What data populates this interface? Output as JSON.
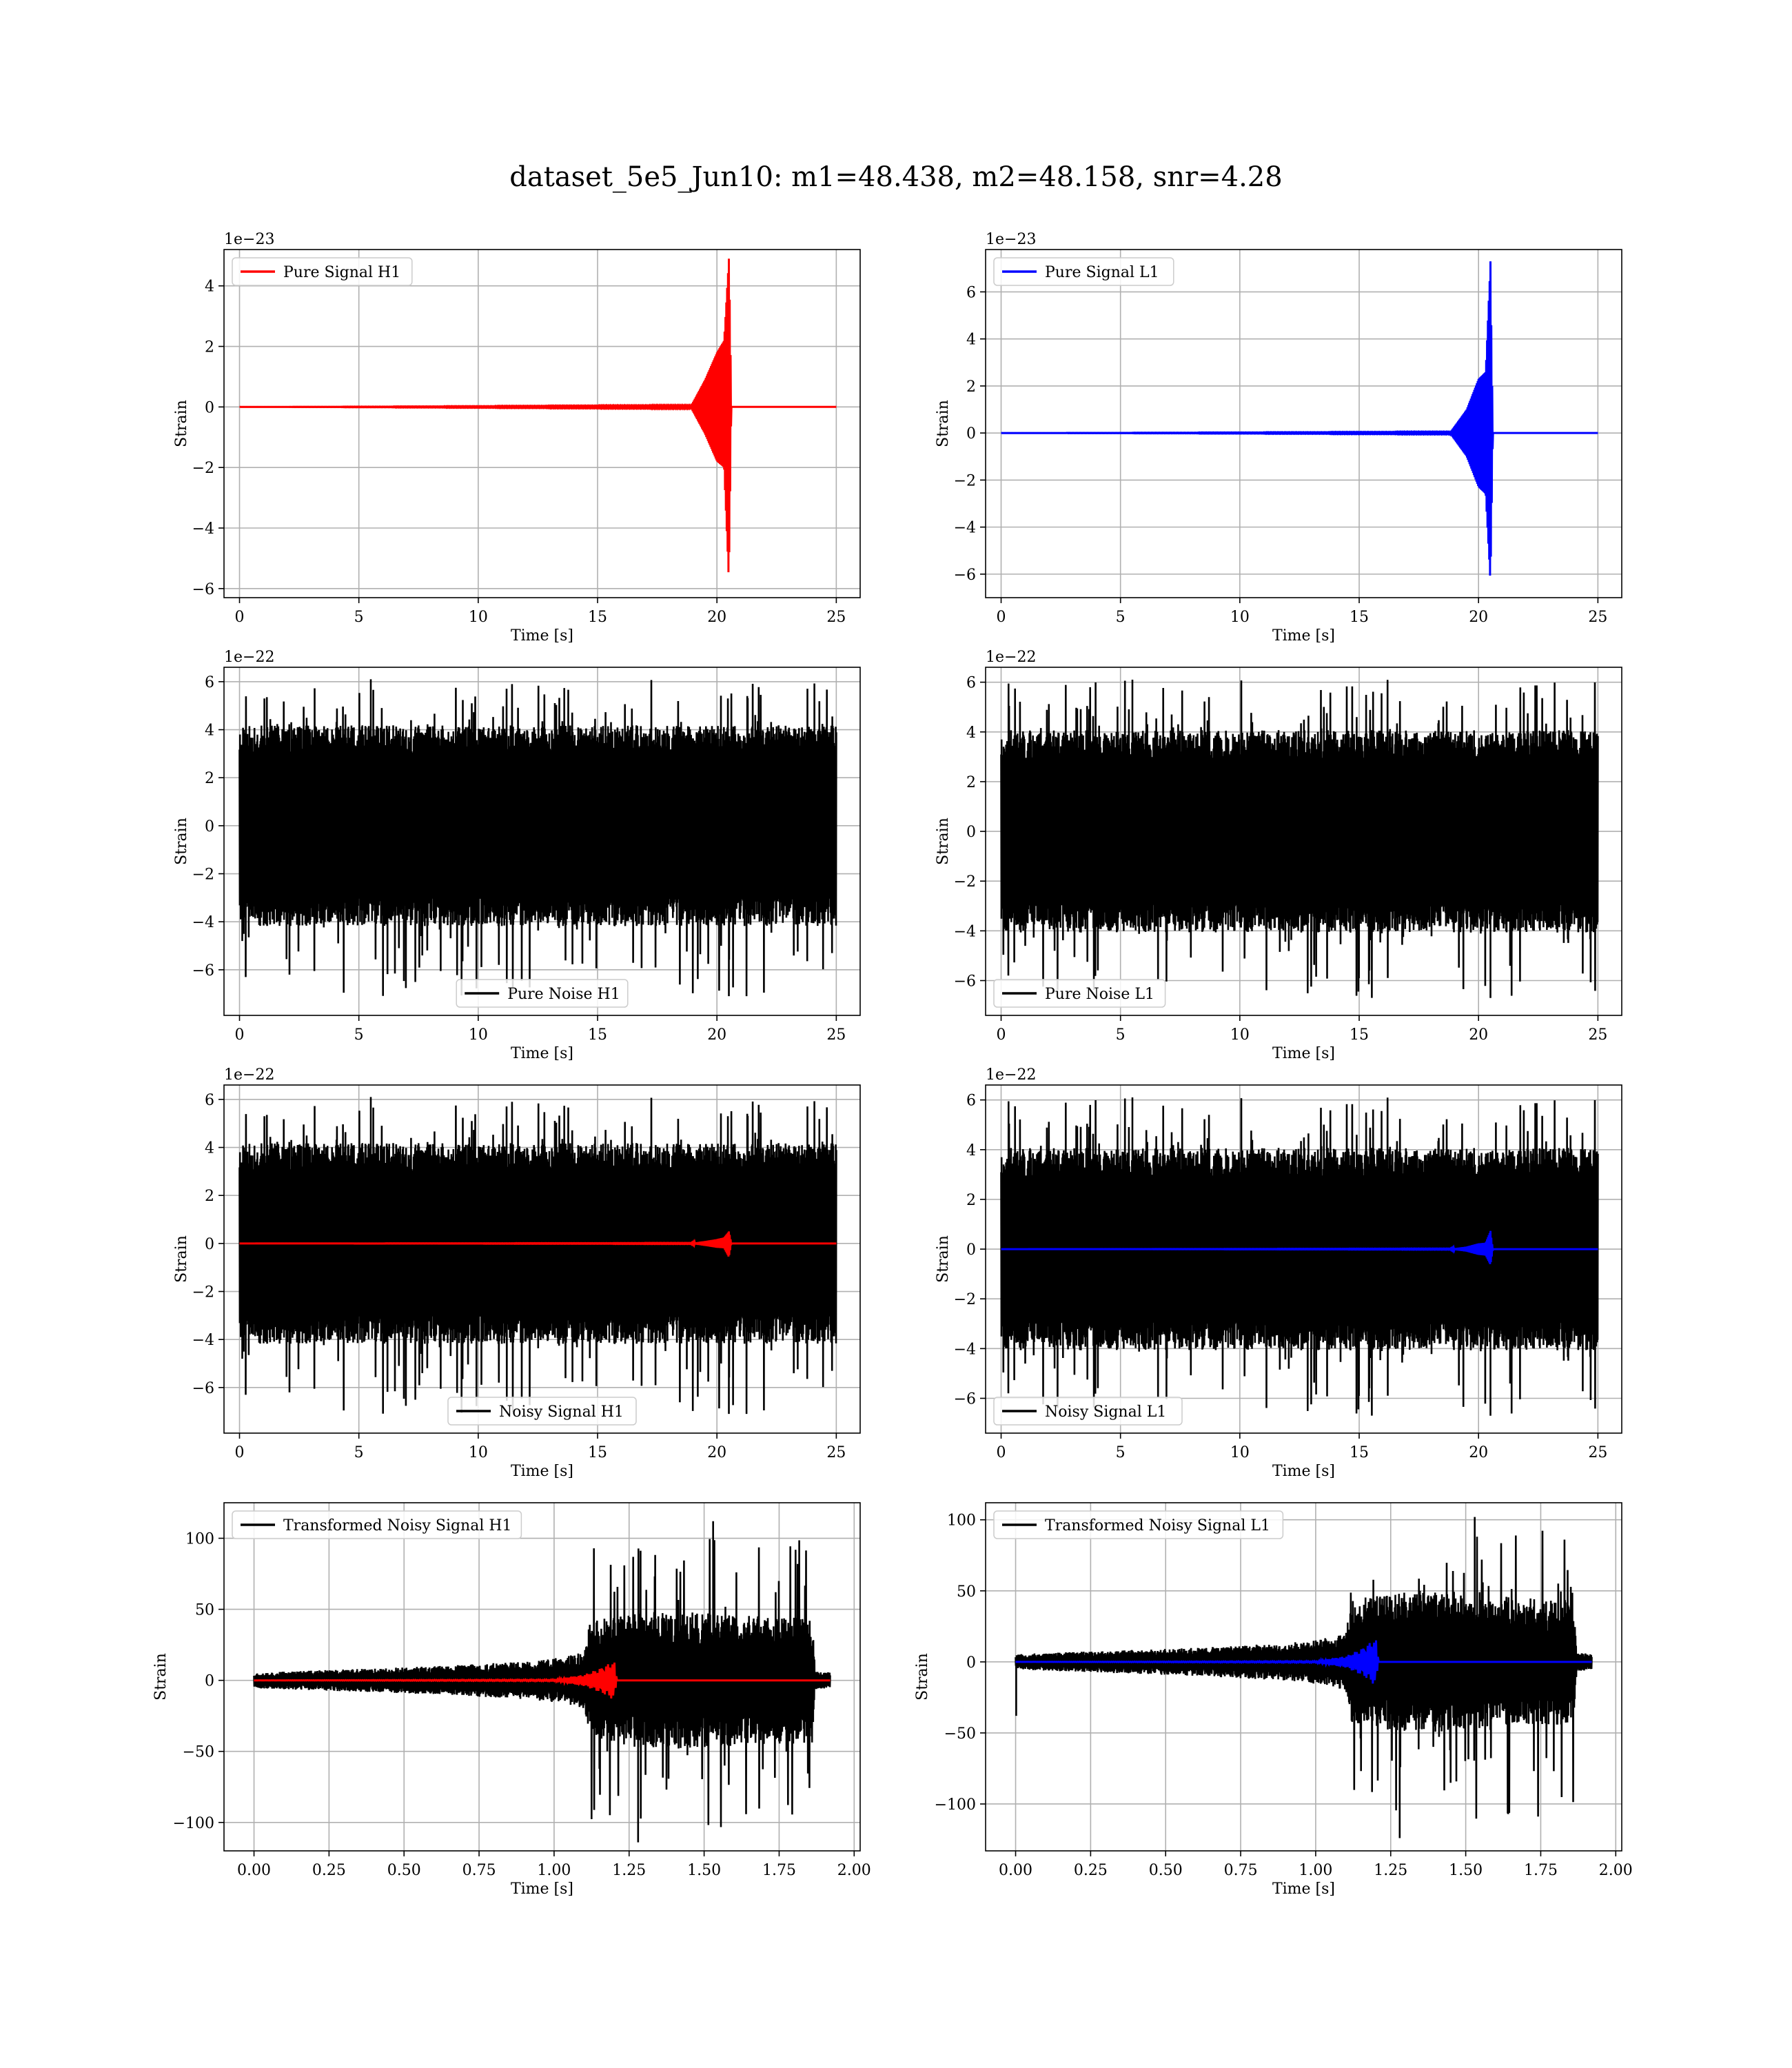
{
  "figure": {
    "suptitle": "dataset_5e5_Jun10: m1=48.438, m2=48.158, snr=4.28"
  },
  "chart_data": [
    {
      "type": "line",
      "panel": "pure-signal-h1",
      "xlabel": "Time [s]",
      "ylabel": "Strain",
      "offset": "1e−23",
      "xlim": [
        -0.65,
        26.0
      ],
      "ylim": [
        -6.3,
        5.2
      ],
      "xticks": [
        0,
        5,
        10,
        15,
        20,
        25
      ],
      "xtick_labels": [
        "0",
        "5",
        "10",
        "15",
        "20",
        "25"
      ],
      "yticks": [
        -6,
        -4,
        -2,
        0,
        2,
        4
      ],
      "ytick_labels": [
        "−6",
        "−4",
        "−2",
        "0",
        "2",
        "4"
      ],
      "grid": true,
      "legend_position": "upper-left",
      "series": [
        {
          "name": "Pure Signal H1",
          "color": "#ff0000",
          "kind": "chirp",
          "x": [
            0,
            18.9,
            19.5,
            20.0,
            20.3,
            20.5,
            20.55,
            20.6,
            25
          ],
          "upper": [
            0,
            0.02,
            0.9,
            1.8,
            2.2,
            4.9,
            3.0,
            0,
            0
          ],
          "lower": [
            0,
            -0.02,
            -0.9,
            -1.8,
            -2.0,
            -5.8,
            -3.0,
            0,
            0
          ]
        }
      ]
    },
    {
      "type": "line",
      "panel": "pure-signal-l1",
      "xlabel": "Time [s]",
      "ylabel": "Strain",
      "offset": "1e−23",
      "xlim": [
        -0.65,
        26.0
      ],
      "ylim": [
        -7.0,
        7.8
      ],
      "xticks": [
        0,
        5,
        10,
        15,
        20,
        25
      ],
      "xtick_labels": [
        "0",
        "5",
        "10",
        "15",
        "20",
        "25"
      ],
      "yticks": [
        -6,
        -4,
        -2,
        0,
        2,
        4,
        6
      ],
      "ytick_labels": [
        "−6",
        "−4",
        "−2",
        "0",
        "2",
        "4",
        "6"
      ],
      "grid": true,
      "legend_position": "upper-left",
      "series": [
        {
          "name": "Pure Signal L1",
          "color": "#0000ff",
          "kind": "chirp",
          "x": [
            0,
            18.8,
            19.5,
            20.0,
            20.3,
            20.5,
            20.55,
            20.6,
            25
          ],
          "upper": [
            0,
            0.02,
            1.0,
            2.3,
            2.6,
            7.3,
            3.5,
            0,
            0
          ],
          "lower": [
            0,
            -0.02,
            -1.0,
            -2.3,
            -2.6,
            -6.4,
            -3.2,
            0,
            0
          ]
        }
      ]
    },
    {
      "type": "line",
      "panel": "pure-noise-h1",
      "xlabel": "Time [s]",
      "ylabel": "Strain",
      "offset": "1e−22",
      "xlim": [
        -0.65,
        26.0
      ],
      "ylim": [
        -7.9,
        6.6
      ],
      "xticks": [
        0,
        5,
        10,
        15,
        20,
        25
      ],
      "xtick_labels": [
        "0",
        "5",
        "10",
        "15",
        "20",
        "25"
      ],
      "yticks": [
        -6,
        -4,
        -2,
        0,
        2,
        4,
        6
      ],
      "ytick_labels": [
        "−6",
        "−4",
        "−2",
        "0",
        "2",
        "4",
        "6"
      ],
      "grid": true,
      "legend_position": "lower-center",
      "series": [
        {
          "name": "Pure Noise H1",
          "color": "#000000",
          "kind": "noise",
          "x_range": [
            0,
            25
          ],
          "band": 3.8,
          "peak_max": 6.1,
          "peak_min": -7.1,
          "seed": 11
        }
      ]
    },
    {
      "type": "line",
      "panel": "pure-noise-l1",
      "xlabel": "Time [s]",
      "ylabel": "Strain",
      "offset": "1e−22",
      "xlim": [
        -0.65,
        26.0
      ],
      "ylim": [
        -7.4,
        6.6
      ],
      "xticks": [
        0,
        5,
        10,
        15,
        20,
        25
      ],
      "xtick_labels": [
        "0",
        "5",
        "10",
        "15",
        "20",
        "25"
      ],
      "yticks": [
        -6,
        -4,
        -2,
        0,
        2,
        4,
        6
      ],
      "ytick_labels": [
        "−6",
        "−4",
        "−2",
        "0",
        "2",
        "4",
        "6"
      ],
      "grid": true,
      "legend_position": "lower-left",
      "series": [
        {
          "name": "Pure Noise L1",
          "color": "#000000",
          "kind": "noise",
          "x_range": [
            0,
            25
          ],
          "band": 3.7,
          "peak_max": 6.1,
          "peak_min": -6.7,
          "seed": 23
        }
      ]
    },
    {
      "type": "line",
      "panel": "noisy-signal-h1",
      "xlabel": "Time [s]",
      "ylabel": "Strain",
      "offset": "1e−22",
      "xlim": [
        -0.65,
        26.0
      ],
      "ylim": [
        -7.9,
        6.6
      ],
      "xticks": [
        0,
        5,
        10,
        15,
        20,
        25
      ],
      "xtick_labels": [
        "0",
        "5",
        "10",
        "15",
        "20",
        "25"
      ],
      "yticks": [
        -6,
        -4,
        -2,
        0,
        2,
        4,
        6
      ],
      "ytick_labels": [
        "−6",
        "−4",
        "−2",
        "0",
        "2",
        "4",
        "6"
      ],
      "grid": true,
      "legend_position": "lower-center",
      "series": [
        {
          "name": "Noisy Signal H1",
          "color": "#000000",
          "kind": "noise",
          "x_range": [
            0,
            25
          ],
          "band": 3.8,
          "peak_max": 6.1,
          "peak_min": -7.1,
          "seed": 11
        },
        {
          "name": "",
          "color": "#ff0000",
          "kind": "chirp",
          "x": [
            0,
            18.9,
            19.5,
            20.0,
            20.3,
            20.5,
            20.55,
            20.6,
            25
          ],
          "upper": [
            0,
            0.01,
            0.1,
            0.18,
            0.25,
            0.5,
            0.3,
            0,
            0
          ],
          "lower": [
            0,
            -0.01,
            -0.1,
            -0.18,
            -0.2,
            -0.58,
            -0.3,
            0,
            0
          ]
        }
      ]
    },
    {
      "type": "line",
      "panel": "noisy-signal-l1",
      "xlabel": "Time [s]",
      "ylabel": "Strain",
      "offset": "1e−22",
      "xlim": [
        -0.65,
        26.0
      ],
      "ylim": [
        -7.4,
        6.6
      ],
      "xticks": [
        0,
        5,
        10,
        15,
        20,
        25
      ],
      "xtick_labels": [
        "0",
        "5",
        "10",
        "15",
        "20",
        "25"
      ],
      "yticks": [
        -6,
        -4,
        -2,
        0,
        2,
        4,
        6
      ],
      "ytick_labels": [
        "−6",
        "−4",
        "−2",
        "0",
        "2",
        "4",
        "6"
      ],
      "grid": true,
      "legend_position": "lower-left",
      "series": [
        {
          "name": "Noisy Signal L1",
          "color": "#000000",
          "kind": "noise",
          "x_range": [
            0,
            25
          ],
          "band": 3.7,
          "peak_max": 6.1,
          "peak_min": -6.7,
          "seed": 23
        },
        {
          "name": "",
          "color": "#0000ff",
          "kind": "chirp",
          "x": [
            0,
            18.8,
            19.5,
            20.0,
            20.3,
            20.5,
            20.55,
            20.6,
            25
          ],
          "upper": [
            0,
            0.01,
            0.1,
            0.23,
            0.26,
            0.73,
            0.35,
            0,
            0
          ],
          "lower": [
            0,
            -0.01,
            -0.1,
            -0.23,
            -0.26,
            -0.64,
            -0.32,
            0,
            0
          ]
        }
      ]
    },
    {
      "type": "line",
      "panel": "transformed-noisy-signal-h1",
      "xlabel": "Time [s]",
      "ylabel": "Strain",
      "offset": "",
      "xlim": [
        -0.1,
        2.02
      ],
      "ylim": [
        -120,
        125
      ],
      "xticks": [
        0.0,
        0.25,
        0.5,
        0.75,
        1.0,
        1.25,
        1.5,
        1.75,
        2.0
      ],
      "xtick_labels": [
        "0.00",
        "0.25",
        "0.50",
        "0.75",
        "1.00",
        "1.25",
        "1.50",
        "1.75",
        "2.00"
      ],
      "yticks": [
        -100,
        -50,
        0,
        50,
        100
      ],
      "ytick_labels": [
        "−100",
        "−50",
        "0",
        "50",
        "100"
      ],
      "grid": true,
      "legend_position": "upper-left",
      "series": [
        {
          "name": "Transformed Noisy Signal H1",
          "color": "#000000",
          "kind": "whitened",
          "x_range": [
            0,
            1.92
          ],
          "seed": 37,
          "env_x": [
            0,
            0.3,
            0.6,
            0.9,
            1.0,
            1.1,
            1.12,
            1.35,
            1.6,
            1.86,
            1.87,
            1.92
          ],
          "env_y": [
            5,
            7,
            9,
            12,
            14,
            18,
            38,
            45,
            42,
            40,
            6,
            5
          ],
          "peak_max": 112,
          "peak_min": -114
        },
        {
          "name": "",
          "color": "#ff0000",
          "kind": "oscillation",
          "x_range": [
            0,
            1.92
          ],
          "env_x": [
            0,
            1.0,
            1.1,
            1.16,
            1.2,
            1.21,
            1.92
          ],
          "env_y": [
            0,
            0.5,
            4,
            9,
            14,
            0,
            0
          ]
        }
      ]
    },
    {
      "type": "line",
      "panel": "transformed-noisy-signal-l1",
      "xlabel": "Time [s]",
      "ylabel": "Strain",
      "offset": "",
      "xlim": [
        -0.1,
        2.02
      ],
      "ylim": [
        -133,
        112
      ],
      "xticks": [
        0.0,
        0.25,
        0.5,
        0.75,
        1.0,
        1.25,
        1.5,
        1.75,
        2.0
      ],
      "xtick_labels": [
        "0.00",
        "0.25",
        "0.50",
        "0.75",
        "1.00",
        "1.25",
        "1.50",
        "1.75",
        "2.00"
      ],
      "yticks": [
        -100,
        -50,
        0,
        50,
        100
      ],
      "ytick_labels": [
        "−100",
        "−50",
        "0",
        "50",
        "100"
      ],
      "grid": true,
      "legend_position": "upper-left",
      "series": [
        {
          "name": "Transformed Noisy Signal L1",
          "color": "#000000",
          "kind": "whitened",
          "x_range": [
            0,
            1.92
          ],
          "seed": 53,
          "env_x": [
            0,
            0.3,
            0.6,
            0.9,
            1.0,
            1.1,
            1.12,
            1.35,
            1.6,
            1.86,
            1.87,
            1.92
          ],
          "env_y": [
            5,
            7,
            9,
            12,
            14,
            18,
            40,
            46,
            42,
            40,
            6,
            5
          ],
          "peak_max": 102,
          "peak_min": -124,
          "start_spike": -38
        },
        {
          "name": "",
          "color": "#0000ff",
          "kind": "oscillation",
          "x_range": [
            0,
            1.92
          ],
          "env_x": [
            0,
            1.0,
            1.1,
            1.16,
            1.2,
            1.21,
            1.92
          ],
          "env_y": [
            0,
            0.5,
            4,
            10,
            17,
            0,
            0
          ]
        }
      ]
    }
  ]
}
